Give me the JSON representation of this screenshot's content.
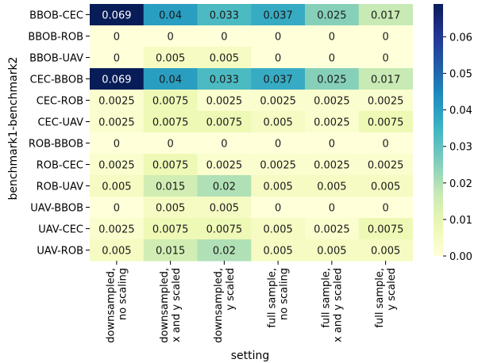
{
  "chart_data": {
    "type": "heatmap",
    "title": "",
    "xlabel": "setting",
    "ylabel": "benchmark1-benchmark2",
    "rows": [
      "BBOB-CEC",
      "BBOB-ROB",
      "BBOB-UAV",
      "CEC-BBOB",
      "CEC-ROB",
      "CEC-UAV",
      "ROB-BBOB",
      "ROB-CEC",
      "ROB-UAV",
      "UAV-BBOB",
      "UAV-CEC",
      "UAV-ROB"
    ],
    "columns": [
      [
        "downsampled,",
        "no scaling"
      ],
      [
        "downsampled,",
        "x and y scaled"
      ],
      [
        "downsampled,",
        "y scaled"
      ],
      [
        "full sample,",
        "no scaling"
      ],
      [
        "full sample,",
        "x and y scaled"
      ],
      [
        "full sample,",
        "y scaled"
      ]
    ],
    "values": [
      [
        0.069,
        0.04,
        0.033,
        0.037,
        0.025,
        0.017
      ],
      [
        0,
        0,
        0,
        0,
        0,
        0
      ],
      [
        0,
        0.005,
        0.005,
        0,
        0,
        0
      ],
      [
        0.069,
        0.04,
        0.033,
        0.037,
        0.025,
        0.017
      ],
      [
        0.0025,
        0.0075,
        0.0025,
        0.0025,
        0.0025,
        0.0025
      ],
      [
        0.0025,
        0.0075,
        0.0075,
        0.005,
        0.0025,
        0.0075
      ],
      [
        0,
        0,
        0,
        0,
        0,
        0
      ],
      [
        0.0025,
        0.0075,
        0.0025,
        0.0025,
        0.0025,
        0.0025
      ],
      [
        0.005,
        0.015,
        0.02,
        0.005,
        0.005,
        0.005
      ],
      [
        0,
        0.005,
        0.005,
        0,
        0,
        0
      ],
      [
        0.0025,
        0.0075,
        0.0075,
        0.005,
        0.0025,
        0.0075
      ],
      [
        0.005,
        0.015,
        0.02,
        0.005,
        0.005,
        0.005
      ]
    ],
    "colorscale": "YlGnBu",
    "colorbar": {
      "range": [
        0,
        0.069
      ],
      "ticks": [
        0.0,
        0.01,
        0.02,
        0.03,
        0.04,
        0.05,
        0.06
      ],
      "tick_labels": [
        "0.00",
        "0.01",
        "0.02",
        "0.03",
        "0.04",
        "0.05",
        "0.06"
      ]
    }
  }
}
